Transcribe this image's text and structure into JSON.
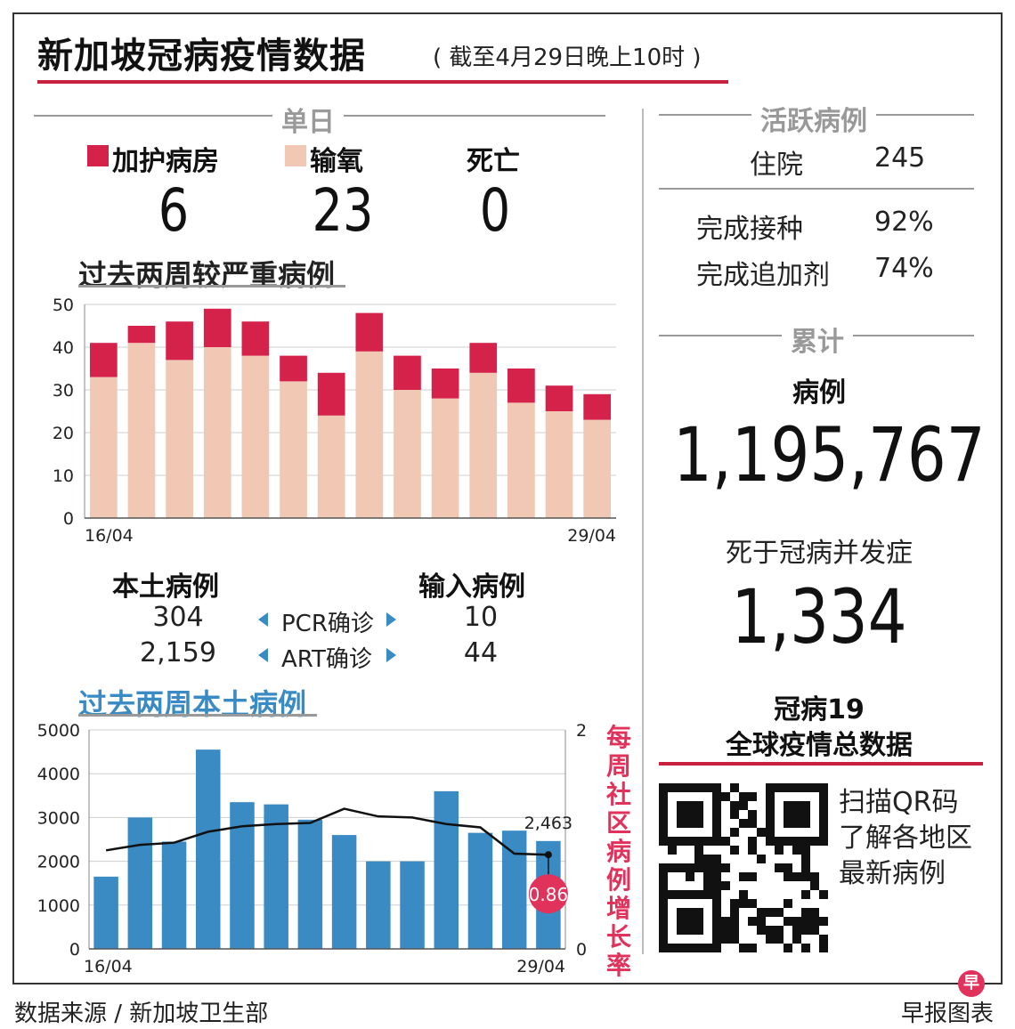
{
  "header": {
    "title": "新加坡冠病疫情数据",
    "subtitle": "( 截至4月29日晚上10时 )"
  },
  "daily": {
    "heading": "单日",
    "items": [
      {
        "label": "加护病房",
        "value": "6",
        "swatch": "#d4224a"
      },
      {
        "label": "输氧",
        "value": "23",
        "swatch": "#f0c8b4"
      },
      {
        "label": "死亡",
        "value": "0"
      }
    ]
  },
  "active": {
    "heading": "活跃病例",
    "hospital_label": "住院",
    "hospital_value": "245",
    "vacc_label": "完成接种",
    "vacc_value": "92%",
    "booster_label": "完成追加剂",
    "booster_value": "74%"
  },
  "cumulative": {
    "heading": "累计",
    "cases_label": "病例",
    "cases_value": "1,195,767",
    "deaths_label": "死于冠病并发症",
    "deaths_value": "1,334"
  },
  "local_import": {
    "local_label": "本土病例",
    "import_label": "输入病例",
    "rows": [
      {
        "local": "304",
        "method": "PCR确诊",
        "imported": "10"
      },
      {
        "local": "2,159",
        "method": "ART确诊",
        "imported": "44"
      }
    ]
  },
  "global": {
    "title_line1": "冠病19",
    "title_line2": "全球疫情总数据",
    "qr_text_1": "扫描QR码",
    "qr_text_2": "了解各地区",
    "qr_text_3": "最新病例"
  },
  "footer": {
    "source": "数据来源 / 新加坡卫生部",
    "credit": "早报图表",
    "logo_char": "早"
  },
  "colors": {
    "accent_red": "#c8203f",
    "icu": "#d4224a",
    "oxygen": "#f0c8b4",
    "bar_blue": "#3a8ac4",
    "badge": "#e0325a"
  },
  "chart_data": [
    {
      "type": "bar",
      "title": "过去两周较严重病例",
      "stacked": true,
      "x_start_label": "16/04",
      "x_end_label": "29/04",
      "ylim": [
        0,
        50
      ],
      "yticks": [
        0,
        10,
        20,
        30,
        40,
        50
      ],
      "series": [
        {
          "values": [
            33,
            41,
            37,
            40,
            38,
            32,
            24,
            39,
            30,
            28,
            34,
            27,
            25,
            23
          ]
        },
        {
          "values": [
            8,
            4,
            9,
            9,
            8,
            6,
            10,
            9,
            8,
            7,
            7,
            8,
            6,
            6
          ]
        }
      ],
      "grid": true
    },
    {
      "type": "bar",
      "title": "过去两周本土病例",
      "x_start_label": "16/04",
      "x_end_label": "29/04",
      "ylim": [
        0,
        5000
      ],
      "yticks": [
        0,
        1000,
        2000,
        3000,
        4000,
        5000
      ],
      "values": [
        1650,
        3000,
        2450,
        4550,
        3350,
        3300,
        2950,
        2600,
        2000,
        2000,
        3600,
        2650,
        2700,
        2463
      ],
      "last_value_label": "2,463",
      "secondary_axis": {
        "label": "每周社区病例增长率",
        "ylim": [
          0,
          2
        ],
        "ticks": [
          0,
          2
        ],
        "line_values": [
          0.9,
          0.95,
          0.97,
          1.07,
          1.12,
          1.14,
          1.15,
          1.28,
          1.21,
          1.2,
          1.14,
          1.11,
          0.87,
          0.86
        ],
        "last_value_label": "0.86"
      }
    }
  ]
}
